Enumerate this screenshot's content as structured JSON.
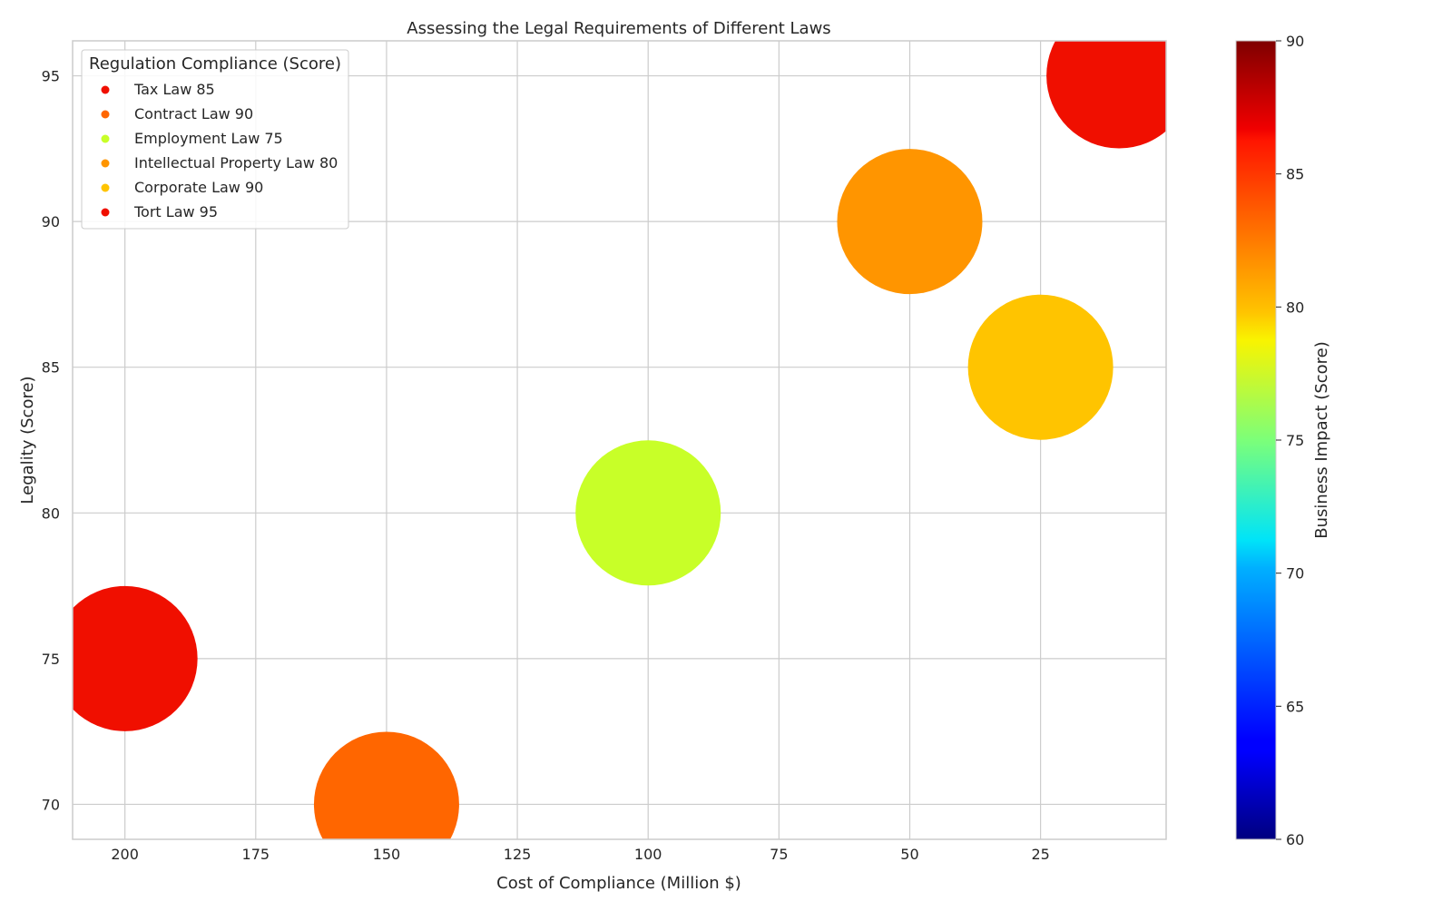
{
  "chart_data": {
    "type": "scatter",
    "title": "Assessing the Legal Requirements of Different Laws",
    "xlabel": "Cost of Compliance (Million $)",
    "ylabel": "Legality (Score)",
    "xlim": [
      210,
      1
    ],
    "ylim": [
      68.8,
      96.2
    ],
    "x_inverted": true,
    "xticks": [
      200,
      175,
      150,
      125,
      100,
      75,
      50,
      25
    ],
    "yticks": [
      70,
      75,
      80,
      85,
      90,
      95
    ],
    "grid": true,
    "legend": {
      "title": "Regulation Compliance (Score)",
      "placement": "top-left"
    },
    "colorbar": {
      "label": "Business Impact (Score)",
      "range": [
        60,
        90
      ],
      "ticks": [
        60,
        65,
        70,
        75,
        80,
        85,
        90
      ],
      "colormap": "jet"
    },
    "series": [
      {
        "name": "Tax Law 85",
        "x": 10,
        "y": 95,
        "color": "#f00f00",
        "business_impact": 87
      },
      {
        "name": "Contract Law 90",
        "x": 150,
        "y": 70,
        "color": "#ff6600",
        "business_impact": 84
      },
      {
        "name": "Employment Law 75",
        "x": 100,
        "y": 80,
        "color": "#c8ff28",
        "business_impact": 78
      },
      {
        "name": "Intellectual Property Law 80",
        "x": 50,
        "y": 90,
        "color": "#ff9500",
        "business_impact": 83
      },
      {
        "name": "Corporate Law 90",
        "x": 25,
        "y": 85,
        "color": "#ffc400",
        "business_impact": 82
      },
      {
        "name": "Tort Law 95",
        "x": 200,
        "y": 75,
        "color": "#f00f00",
        "business_impact": 87
      }
    ]
  }
}
